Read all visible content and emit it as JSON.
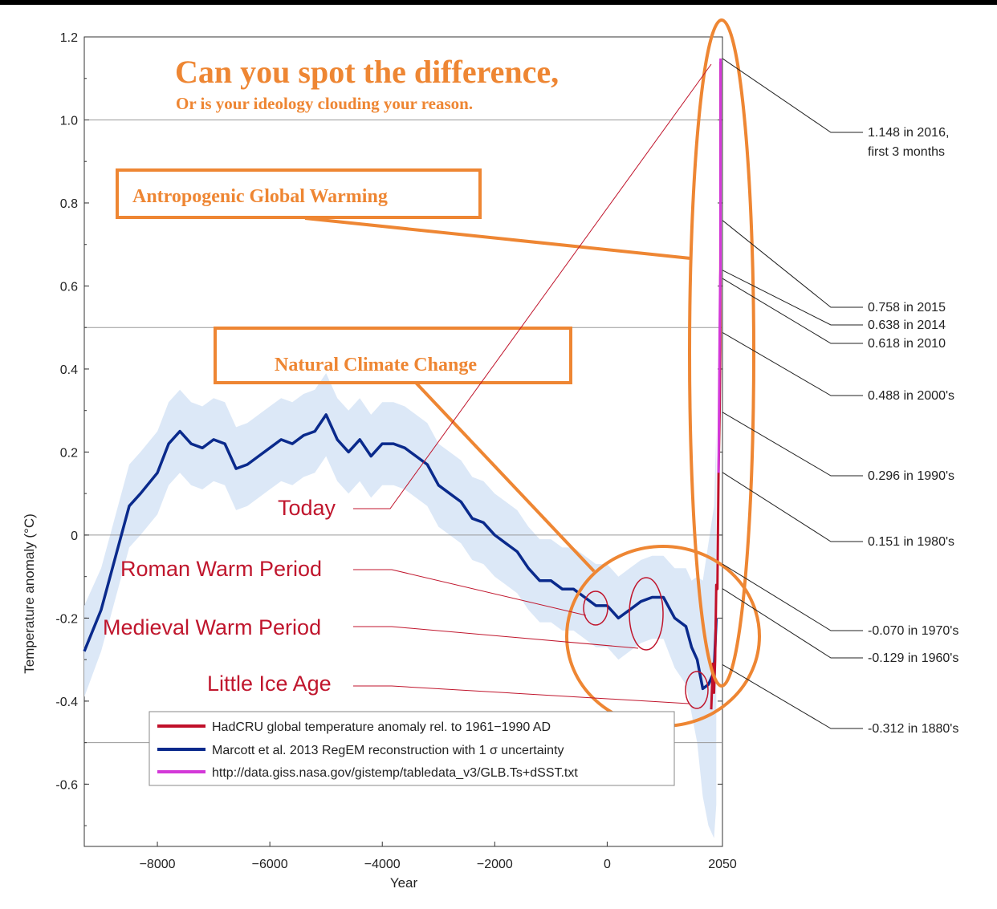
{
  "headline": {
    "title": "Can you spot the difference,",
    "subtitle": "Or is your ideology clouding your reason."
  },
  "callouts": {
    "agw": "Antropogenic Global Warming",
    "natural": "Natural Climate Change"
  },
  "era_labels": {
    "today": "Today",
    "roman": "Roman Warm Period",
    "medieval": "Medieval Warm Period",
    "little_ice": "Little Ice Age"
  },
  "right_annotations": [
    {
      "text": "1.148 in 2016,",
      "text2": "first 3 months",
      "value": 1.148
    },
    {
      "text": "0.758 in 2015",
      "value": 0.758
    },
    {
      "text": "0.638 in 2014",
      "value": 0.638
    },
    {
      "text": "0.618 in 2010",
      "value": 0.618
    },
    {
      "text": "0.488 in 2000's",
      "value": 0.488
    },
    {
      "text": "0.296 in 1990's",
      "value": 0.296
    },
    {
      "text": "0.151 in 1980's",
      "value": 0.151
    },
    {
      "text": "-0.070 in 1970's",
      "value": -0.07
    },
    {
      "text": "-0.129 in 1960's",
      "value": -0.129
    },
    {
      "text": "-0.312 in 1880's",
      "value": -0.312
    }
  ],
  "colors": {
    "orange": "#ee8633",
    "marcott": "#0a2a8c",
    "hadcru": "#c0102a",
    "giss": "#d338d8",
    "band": "#dce8f7",
    "label_red": "#c0162d"
  },
  "chart_data": {
    "type": "line",
    "xlabel": "Year",
    "ylabel": "Temperature anomaly (°C)",
    "xlim": [
      -9300,
      2050
    ],
    "ylim": [
      -0.75,
      1.2
    ],
    "x_ticks": [
      -8000,
      -6000,
      -4000,
      -2000,
      0,
      2050
    ],
    "x_tick_labels": [
      "−8000",
      "−6000",
      "−4000",
      "−2000",
      "0",
      "2050"
    ],
    "y_ticks": [
      1.2,
      1.0,
      0.8,
      0.6,
      0.4,
      0.2,
      0,
      -0.2,
      -0.4,
      -0.6
    ],
    "y_tick_labels": [
      "1.2",
      "1.0",
      "0.8",
      "0.6",
      "0.4",
      "0.2",
      "0",
      "-0.2",
      "-0.4",
      "-0.6"
    ],
    "gridlines_y": [
      1.0,
      0.5,
      0,
      -0.5
    ],
    "legend_position": "bottom-left",
    "series": [
      {
        "name": "HadCRU global temperature anomaly rel. to 1961−1990 AD",
        "color": "#c0102a",
        "x": [
          1850,
          1880,
          1900,
          1920,
          1940,
          1960,
          1980,
          2000,
          2010,
          2015,
          2016
        ],
        "y": [
          -0.42,
          -0.31,
          -0.38,
          -0.3,
          -0.12,
          -0.13,
          0.15,
          0.3,
          0.45,
          0.76,
          1.14
        ]
      },
      {
        "name": "Marcott et al. 2013 RegEM reconstruction with 1 σ uncertainty",
        "color": "#0a2a8c",
        "x": [
          -9300,
          -9000,
          -8700,
          -8500,
          -8300,
          -8000,
          -7800,
          -7600,
          -7400,
          -7200,
          -7000,
          -6800,
          -6600,
          -6400,
          -6200,
          -6000,
          -5800,
          -5600,
          -5400,
          -5200,
          -5000,
          -4800,
          -4600,
          -4400,
          -4200,
          -4000,
          -3800,
          -3600,
          -3400,
          -3200,
          -3000,
          -2800,
          -2600,
          -2400,
          -2200,
          -2000,
          -1800,
          -1600,
          -1400,
          -1200,
          -1000,
          -800,
          -600,
          -400,
          -200,
          0,
          200,
          400,
          600,
          800,
          1000,
          1200,
          1400,
          1500,
          1600,
          1700,
          1800,
          1900,
          1940
        ],
        "y": [
          -0.28,
          -0.18,
          -0.03,
          0.07,
          0.1,
          0.15,
          0.22,
          0.25,
          0.22,
          0.21,
          0.23,
          0.22,
          0.16,
          0.17,
          0.19,
          0.21,
          0.23,
          0.22,
          0.24,
          0.25,
          0.29,
          0.23,
          0.2,
          0.23,
          0.19,
          0.22,
          0.22,
          0.21,
          0.19,
          0.17,
          0.12,
          0.1,
          0.08,
          0.04,
          0.03,
          0.0,
          -0.02,
          -0.04,
          -0.08,
          -0.11,
          -0.11,
          -0.13,
          -0.13,
          -0.15,
          -0.17,
          -0.17,
          -0.2,
          -0.18,
          -0.16,
          -0.15,
          -0.15,
          -0.2,
          -0.22,
          -0.27,
          -0.3,
          -0.37,
          -0.36,
          -0.33,
          -0.2
        ],
        "band_sigma": [
          0.11,
          0.1,
          0.1,
          0.1,
          0.1,
          0.1,
          0.1,
          0.1,
          0.1,
          0.1,
          0.1,
          0.1,
          0.1,
          0.1,
          0.1,
          0.1,
          0.1,
          0.1,
          0.1,
          0.1,
          0.1,
          0.1,
          0.1,
          0.1,
          0.1,
          0.1,
          0.1,
          0.1,
          0.1,
          0.1,
          0.1,
          0.1,
          0.1,
          0.1,
          0.1,
          0.1,
          0.1,
          0.1,
          0.1,
          0.1,
          0.1,
          0.1,
          0.1,
          0.1,
          0.1,
          0.1,
          0.1,
          0.1,
          0.1,
          0.1,
          0.1,
          0.12,
          0.14,
          0.16,
          0.2,
          0.26,
          0.34,
          0.4,
          0.45
        ]
      },
      {
        "name": "http://data.giss.nasa.gov/gistemp/tabledata_v3/GLB.Ts+dSST.txt",
        "color": "#d338d8",
        "x": [
          1980,
          2000,
          2010,
          2014,
          2015,
          2016
        ],
        "y": [
          0.15,
          0.49,
          0.62,
          0.64,
          0.76,
          1.148
        ]
      }
    ]
  }
}
